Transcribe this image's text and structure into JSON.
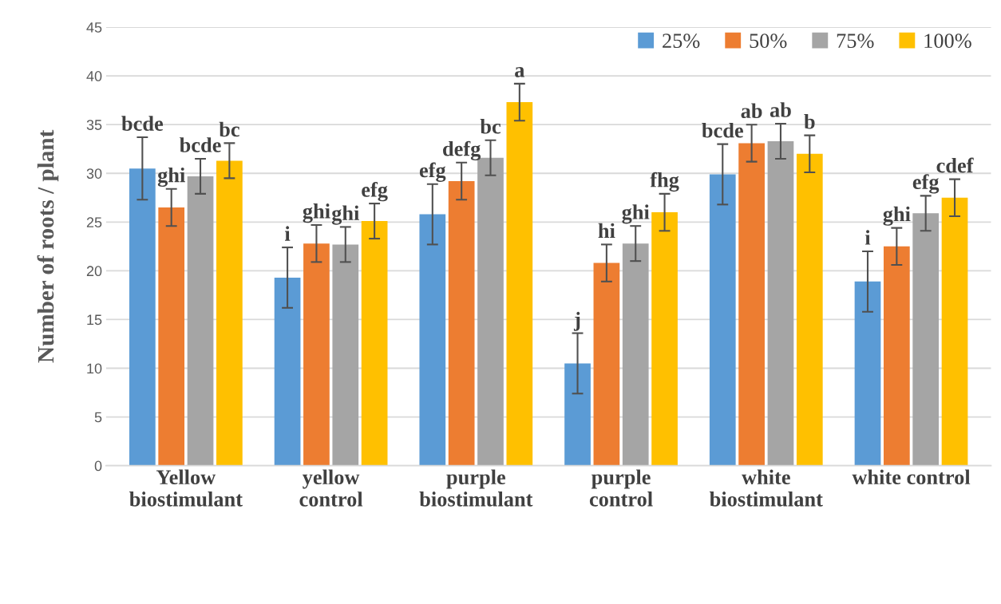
{
  "chart_data": {
    "type": "bar",
    "ylabel": "Number of roots / plant",
    "categories": [
      "Yellow\nbiostimulant",
      "yellow\ncontrol",
      "purple\nbiostimulant",
      "purple\ncontrol",
      "white\nbiostimulant",
      "white control"
    ],
    "series": [
      {
        "name": "25%",
        "color": "#5b9bd5",
        "values": [
          30.5,
          19.3,
          25.8,
          10.5,
          29.9,
          18.9
        ],
        "errors": [
          3.2,
          3.1,
          3.1,
          3.1,
          3.1,
          3.1
        ],
        "value_labels": [
          "bcde",
          "i",
          "efg",
          "j",
          "bcde",
          "i"
        ]
      },
      {
        "name": "50%",
        "color": "#ed7d31",
        "values": [
          26.5,
          22.8,
          29.2,
          20.8,
          33.1,
          22.5
        ],
        "errors": [
          1.9,
          1.9,
          1.9,
          1.9,
          1.9,
          1.9
        ],
        "value_labels": [
          "ghi",
          "ghi",
          "defg",
          "hi",
          "ab",
          "ghi"
        ]
      },
      {
        "name": "75%",
        "color": "#a5a5a5",
        "values": [
          29.7,
          22.7,
          31.6,
          22.8,
          33.3,
          25.9
        ],
        "errors": [
          1.8,
          1.8,
          1.8,
          1.8,
          1.8,
          1.8
        ],
        "value_labels": [
          "bcde",
          "ghi",
          "bc",
          "ghi",
          "ab",
          "efg"
        ]
      },
      {
        "name": "100%",
        "color": "#ffc000",
        "values": [
          31.3,
          25.1,
          37.3,
          26.0,
          32.0,
          27.5
        ],
        "errors": [
          1.8,
          1.8,
          1.9,
          1.9,
          1.9,
          1.9
        ],
        "value_labels": [
          "bc",
          "efg",
          "a",
          "fhg",
          "b",
          "cdef"
        ]
      }
    ],
    "ylim": [
      0,
      45
    ],
    "yticks": [
      0,
      5,
      10,
      15,
      20,
      25,
      30,
      35,
      40,
      45
    ],
    "grid": "y",
    "legend": "top right"
  }
}
